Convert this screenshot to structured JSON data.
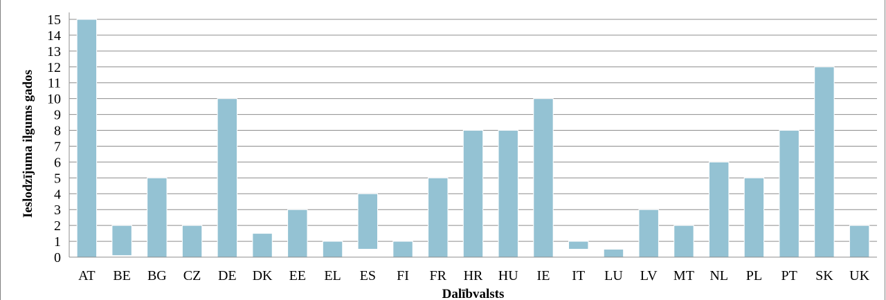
{
  "chart_data": {
    "type": "bar",
    "title": "",
    "xlabel": "Dalībvalsts",
    "ylabel": "Ieslodzījuma ilgums gados",
    "ylim": [
      0,
      15
    ],
    "yticks": [
      0,
      1,
      2,
      3,
      4,
      5,
      6,
      7,
      8,
      9,
      10,
      11,
      12,
      13,
      14,
      15
    ],
    "grid": true,
    "categories": [
      "AT",
      "BE",
      "BG",
      "CZ",
      "DE",
      "DK",
      "EE",
      "EL",
      "ES",
      "FI",
      "FR",
      "HR",
      "HU",
      "IE",
      "IT",
      "LU",
      "LV",
      "MT",
      "NL",
      "PL",
      "PT",
      "SK",
      "UK"
    ],
    "series": [
      {
        "low": [
          0,
          0.1,
          0,
          0,
          0,
          0,
          0,
          0,
          0.5,
          0,
          0,
          0,
          0,
          0,
          0.5,
          0,
          0,
          0,
          0,
          0,
          0,
          0,
          0
        ],
        "high": [
          15,
          2,
          5,
          2,
          10,
          1.5,
          3,
          1,
          4,
          1,
          5,
          8,
          8,
          10,
          1,
          0.5,
          3,
          2,
          6,
          5,
          8,
          12,
          2
        ]
      }
    ],
    "colors": {
      "bar": "#94c2d3",
      "bar_edge": "#ffffff",
      "grid": "#8c8c8c",
      "axis": "#8c8c8c"
    }
  }
}
